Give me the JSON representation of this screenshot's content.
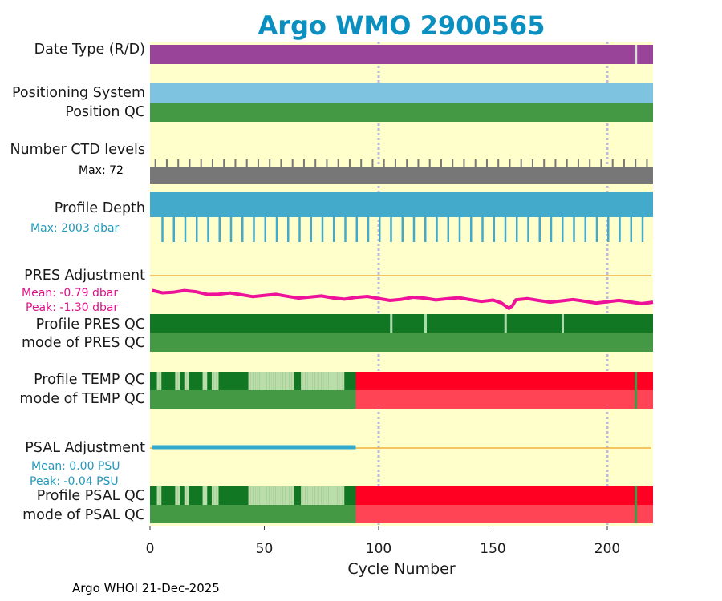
{
  "colors": {
    "background": "#ffffcc",
    "title": "#0a8fc0",
    "date_type": "#994499",
    "positioning": "#7ec4e0",
    "qc_good": "#449944",
    "qc_good_dark": "#117722",
    "qc_bad": "#ff0022",
    "qc_bad_light": "#ff4455",
    "qc_light": "#bbddaa",
    "ctd": "#777777",
    "profile_depth": "#44aacc",
    "pres_line": "#ee1199",
    "psal_line": "#33aacc",
    "ref_line": "#f0b040",
    "grid": "#bbbbdd",
    "pres_text": "#dd1188",
    "psal_text": "#2299bb"
  },
  "title": "Argo WMO 2900565",
  "rows": {
    "date_type": "Date Type (R/D)",
    "positioning": "Positioning System",
    "position_qc": "Position QC",
    "ctd_levels": "Number CTD levels",
    "ctd_max": "Max: 72",
    "profile_depth": "Profile Depth",
    "depth_max": "Max: 2003 dbar",
    "pres_adj": "PRES Adjustment",
    "pres_mean": "Mean: -0.79 dbar",
    "pres_peak": "Peak: -1.30 dbar",
    "pres_qc": "Profile PRES QC",
    "pres_mode": "mode of PRES QC",
    "temp_qc": "Profile TEMP QC",
    "temp_mode": "mode of TEMP QC",
    "psal_adj": "PSAL Adjustment",
    "psal_mean": "Mean: 0.00 PSU",
    "psal_peak": "Peak: -0.04 PSU",
    "psal_qc": "Profile PSAL QC",
    "psal_mode": "mode of PSAL QC"
  },
  "xaxis": {
    "label": "Cycle Number",
    "ticks": [
      "0",
      "50",
      "100",
      "150",
      "200"
    ]
  },
  "footer": "Argo WHOI 21-Dec-2025",
  "chart_data": {
    "type": "timeline",
    "title": "Argo WMO 2900565",
    "xlabel": "Cycle Number",
    "xlim": [
      0,
      220
    ],
    "xticks": [
      0,
      50,
      100,
      150,
      200
    ],
    "gridlines_x": [
      100,
      200
    ],
    "last_cycle": 220,
    "date_type_marker_cycle": 212,
    "ctd_levels_max": 72,
    "ctd_peak_every_cycles": 5,
    "profile_depth_max_dbar": 2003,
    "profile_depth_short_every_cycles": 5,
    "pres_adjustment": {
      "mean_dbar": -0.79,
      "peak_dbar": -1.3,
      "cycles": [
        1,
        10,
        20,
        30,
        40,
        50,
        60,
        70,
        80,
        90,
        100,
        110,
        120,
        130,
        140,
        150,
        157,
        160,
        170,
        180,
        190,
        200,
        210,
        220
      ],
      "values": [
        -0.35,
        -0.45,
        -0.42,
        -0.55,
        -0.58,
        -0.62,
        -0.66,
        -0.7,
        -0.75,
        -0.72,
        -0.78,
        -0.82,
        -0.76,
        -0.79,
        -0.84,
        -0.86,
        -1.3,
        -0.85,
        -0.88,
        -0.9,
        -0.92,
        -0.95,
        -0.96,
        -0.97
      ],
      "ylim": [
        -1.6,
        0.6
      ]
    },
    "psal_adjustment": {
      "mean_psu": 0.0,
      "peak_psu": -0.04,
      "start_cycle": 1,
      "end_cycle": 90,
      "value_psu": 0.0
    },
    "pres_qc_flag_cycles": [
      105,
      120,
      155,
      180
    ],
    "temp_qc": {
      "flagged_until_cycle": 90,
      "bad_from_cycle": 90,
      "good_marker_cycle": 212,
      "light_cycles": [
        3,
        4,
        11,
        12,
        15,
        16,
        23,
        24,
        27,
        28,
        29,
        43,
        44,
        45,
        46,
        47,
        48,
        49,
        50,
        51,
        52,
        53,
        54,
        55,
        56,
        57,
        58,
        59,
        60,
        61,
        62,
        66,
        67,
        68,
        69,
        70,
        71,
        72,
        73,
        74,
        75,
        76,
        77,
        78,
        79,
        80,
        81,
        82,
        83,
        84
      ]
    },
    "psal_qc": {
      "flagged_until_cycle": 90,
      "bad_from_cycle": 90,
      "good_marker_cycle": 212,
      "light_cycles": [
        3,
        4,
        11,
        12,
        15,
        16,
        23,
        24,
        27,
        28,
        29,
        43,
        44,
        45,
        46,
        47,
        48,
        49,
        50,
        51,
        52,
        53,
        54,
        55,
        56,
        57,
        58,
        59,
        60,
        61,
        62,
        66,
        67,
        68,
        69,
        70,
        71,
        72,
        73,
        74,
        75,
        76,
        77,
        78,
        79,
        80,
        81,
        82,
        83,
        84
      ]
    }
  }
}
